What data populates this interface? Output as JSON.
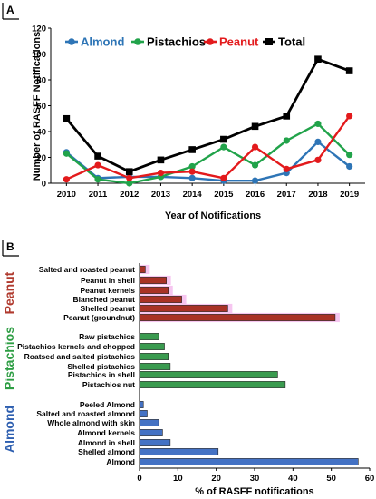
{
  "panel_a": {
    "tag": "A",
    "chart_data": {
      "type": "line",
      "x": [
        2010,
        2011,
        2012,
        2013,
        2014,
        2015,
        2016,
        2017,
        2018,
        2019
      ],
      "series": [
        {
          "name": "Almond",
          "color": "#2e75b6",
          "marker": "circle",
          "values": [
            24,
            4,
            5,
            5,
            4,
            2,
            2,
            8,
            32,
            13
          ]
        },
        {
          "name": "Pistachios",
          "color": "#21a34a",
          "marker": "circle",
          "values": [
            23,
            3,
            0,
            5,
            13,
            28,
            14,
            33,
            46,
            22
          ]
        },
        {
          "name": "Peanut",
          "color": "#e31a1c",
          "marker": "circle",
          "values": [
            3,
            14,
            4,
            8,
            9,
            4,
            28,
            11,
            18,
            52
          ]
        },
        {
          "name": "Total",
          "color": "#000000",
          "marker": "square",
          "values": [
            50,
            21,
            9,
            18,
            26,
            34,
            44,
            52,
            96,
            87
          ]
        }
      ],
      "xlabel": "Year of Notifications",
      "ylabel": "Number of RASFF Notifications",
      "ylim": [
        0,
        120
      ],
      "yticks": [
        0,
        20,
        40,
        60,
        80,
        100,
        120
      ],
      "xticks": [
        "2010",
        "2011",
        "2012",
        "2013",
        "2014",
        "2015",
        "2016",
        "2017",
        "2018",
        "2019"
      ],
      "legend_placement": "top",
      "grid": false
    }
  },
  "panel_b": {
    "tag": "B",
    "chart_data": {
      "type": "bar",
      "orientation": "horizontal",
      "xlabel": "% of RASFF notifications",
      "xlim": [
        0,
        60
      ],
      "xticks": [
        "0",
        "10",
        "20",
        "30",
        "40",
        "50",
        "60"
      ],
      "grid": false,
      "groups": [
        {
          "name": "Peanut",
          "color": "#a93226",
          "label_color": "#b03a2e",
          "categories": [
            "Salted and roasted peanut",
            "Peanut in shell",
            "Peanut kernels",
            "Blanched peanut",
            "Shelled peanut",
            "Peanut (groundnut)"
          ],
          "values": [
            1.5,
            7,
            7.5,
            11,
            23,
            51
          ]
        },
        {
          "name": "Pistachios",
          "color": "#3a9b4f",
          "label_color": "#2e9e44",
          "categories": [
            "Raw pistachios",
            "Pistachios kernels and chopped",
            "Roatsed and salted pistachios",
            "Shelled pistachios",
            "Pistachios in shell",
            "Pistachios nut"
          ],
          "values": [
            5,
            6.5,
            7.5,
            8,
            36,
            38
          ]
        },
        {
          "name": "Almond",
          "color": "#4472c4",
          "label_color": "#2e5fb0",
          "categories": [
            "Peeled Almond",
            "Salted and roasted almond",
            "Whole almond with skin",
            "Almond kernels",
            "Almond in shell",
            "Shelled almond",
            "Almond"
          ],
          "values": [
            1,
            2,
            5,
            6,
            8,
            20.5,
            57
          ]
        }
      ]
    }
  }
}
